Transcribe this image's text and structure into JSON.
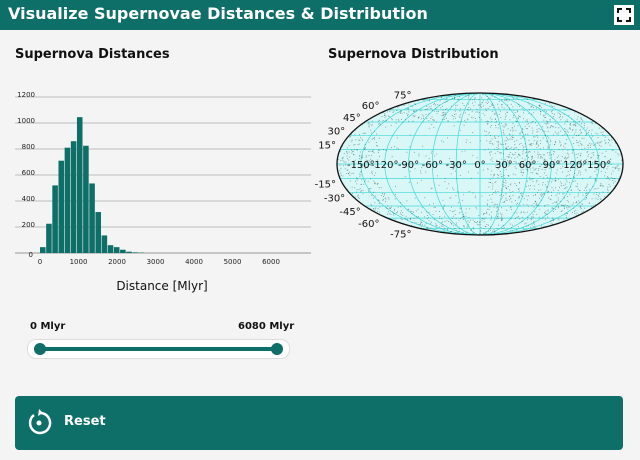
{
  "header": {
    "title": "Visualize Supernovae Distances & Distribution",
    "fullscreen_icon": "expand-icon"
  },
  "histogram_title": "Supernova Distances",
  "map_title": "Supernova Distribution",
  "slider": {
    "min_label": "0 Mlyr",
    "max_label": "6080 Mlyr",
    "low": 0,
    "high": 6080,
    "range": [
      0,
      6080
    ]
  },
  "reset": {
    "label": "Reset",
    "icon": "reset-icon"
  },
  "chart_data": [
    {
      "type": "bar",
      "title": "",
      "xlabel": "Distance [Mlyr]",
      "ylabel": "",
      "bin_width": 160,
      "bin_starts": [
        0,
        160,
        320,
        480,
        640,
        800,
        960,
        1120,
        1280,
        1440,
        1600,
        1760,
        1920,
        2080,
        2240,
        2400,
        2560
      ],
      "values": [
        45,
        225,
        520,
        710,
        810,
        860,
        1045,
        825,
        535,
        315,
        135,
        60,
        45,
        25,
        10,
        5,
        3
      ],
      "xlim": [
        -300,
        6900
      ],
      "ylim": [
        0,
        1200
      ],
      "xticks": [
        "0",
        "1000",
        "2000",
        "3000",
        "4000",
        "5000",
        "6000"
      ],
      "yticks": [
        "0",
        "200",
        "400",
        "600",
        "800",
        "1000",
        "1200"
      ],
      "grid": "horizontal"
    },
    {
      "type": "scatter",
      "projection": "mollweide",
      "title": "",
      "lon_ticks": [
        "-150°",
        "-120°",
        "-90°",
        "-60°",
        "-30°",
        "0°",
        "30°",
        "60°",
        "90°",
        "120°",
        "150°"
      ],
      "lat_ticks": [
        "75°",
        "60°",
        "45°",
        "30°",
        "15°",
        "-15°",
        "-30°",
        "-45°",
        "-60°",
        "-75°"
      ],
      "background": "#d9f7f7",
      "grid_color": "#40d8d8",
      "point_color": "#2f5f5f"
    }
  ]
}
